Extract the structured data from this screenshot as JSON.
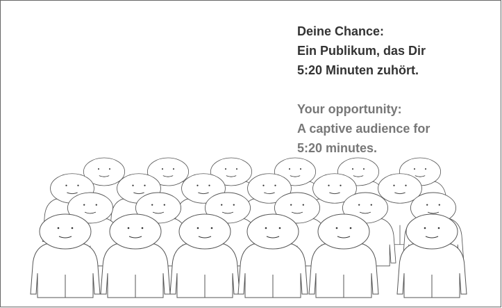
{
  "german": {
    "lines": [
      "Deine Chance:",
      "Ein Publikum, das Dir",
      "5:20 Minuten zuhört."
    ]
  },
  "english": {
    "lines": [
      "Your opportunity:",
      "A captive audience for",
      "5:20 minutes."
    ]
  }
}
